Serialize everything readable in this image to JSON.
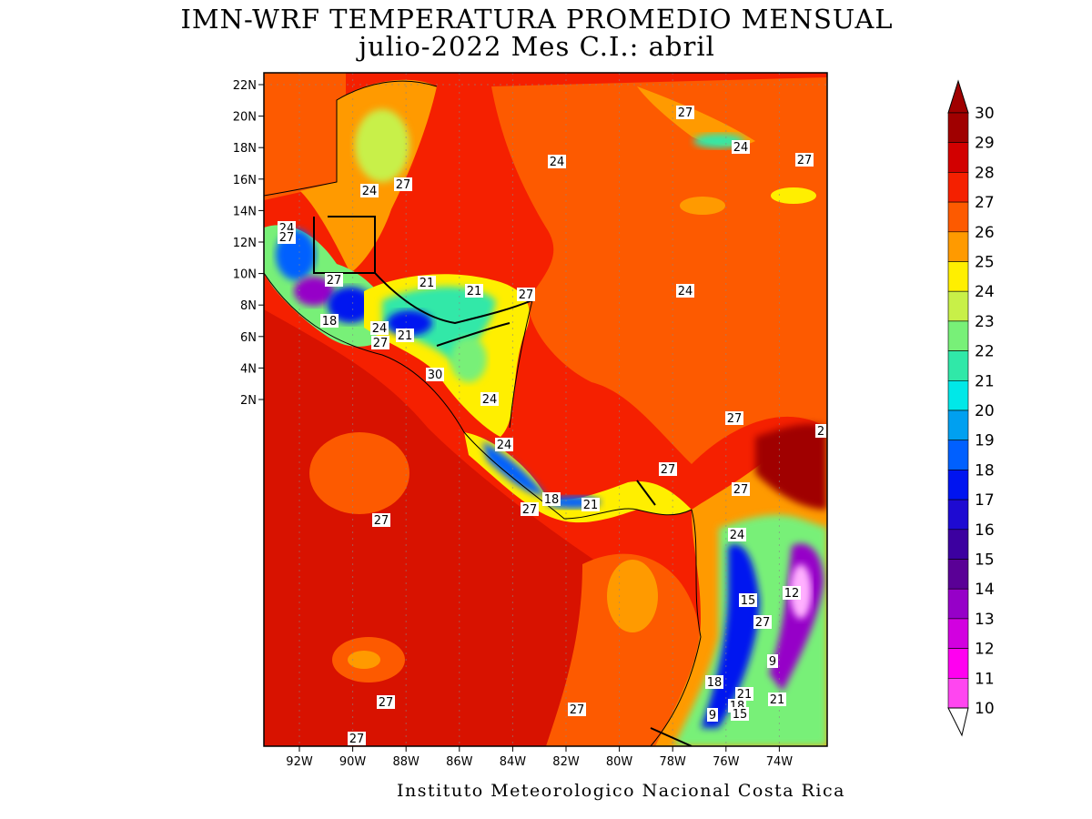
{
  "header": {
    "title_line1": "IMN-WRF  TEMPERATURA PROMEDIO MENSUAL",
    "title_line2": "julio-2022 Mes C.I.: abril"
  },
  "footer": {
    "credit": "Instituto Meteorologico Nacional Costa Rica"
  },
  "map": {
    "lat_ticks": [
      "22N",
      "20N",
      "18N",
      "16N",
      "14N",
      "12N",
      "10N",
      "8N",
      "6N",
      "4N",
      "2N"
    ],
    "lon_ticks": [
      "92W",
      "90W",
      "88W",
      "86W",
      "84W",
      "82W",
      "80W",
      "78W",
      "76W",
      "74W"
    ],
    "contour_labels": [
      "27",
      "24",
      "24",
      "27",
      "24",
      "21",
      "27",
      "24",
      "27",
      "24",
      "21",
      "27",
      "18",
      "24",
      "27",
      "21",
      "30",
      "24",
      "27",
      "24",
      "27",
      "18",
      "21",
      "27",
      "27",
      "24",
      "15",
      "12",
      "27",
      "9",
      "18",
      "21",
      "21",
      "18",
      "15",
      "9",
      "27",
      "27",
      "27",
      "27",
      "2",
      "27"
    ]
  },
  "colorbar": {
    "levels": [
      "30",
      "29",
      "28",
      "27",
      "26",
      "25",
      "24",
      "23",
      "22",
      "21",
      "20",
      "19",
      "18",
      "17",
      "16",
      "15",
      "14",
      "13",
      "12",
      "11",
      "10"
    ],
    "colors": [
      "#a00000",
      "#d20000",
      "#f52000",
      "#fd5a00",
      "#ff9a00",
      "#ffef00",
      "#c8f048",
      "#78f078",
      "#30e8a8",
      "#00e8e8",
      "#00a0f0",
      "#0060ff",
      "#0014f0",
      "#1e0ad2",
      "#3c00a0",
      "#5a0096",
      "#9600c8",
      "#d200e0",
      "#ff00f0",
      "#ff46f0",
      "#ffb0ff"
    ],
    "top_color": "#a00000",
    "bottom_color": "#ffb0ff"
  }
}
